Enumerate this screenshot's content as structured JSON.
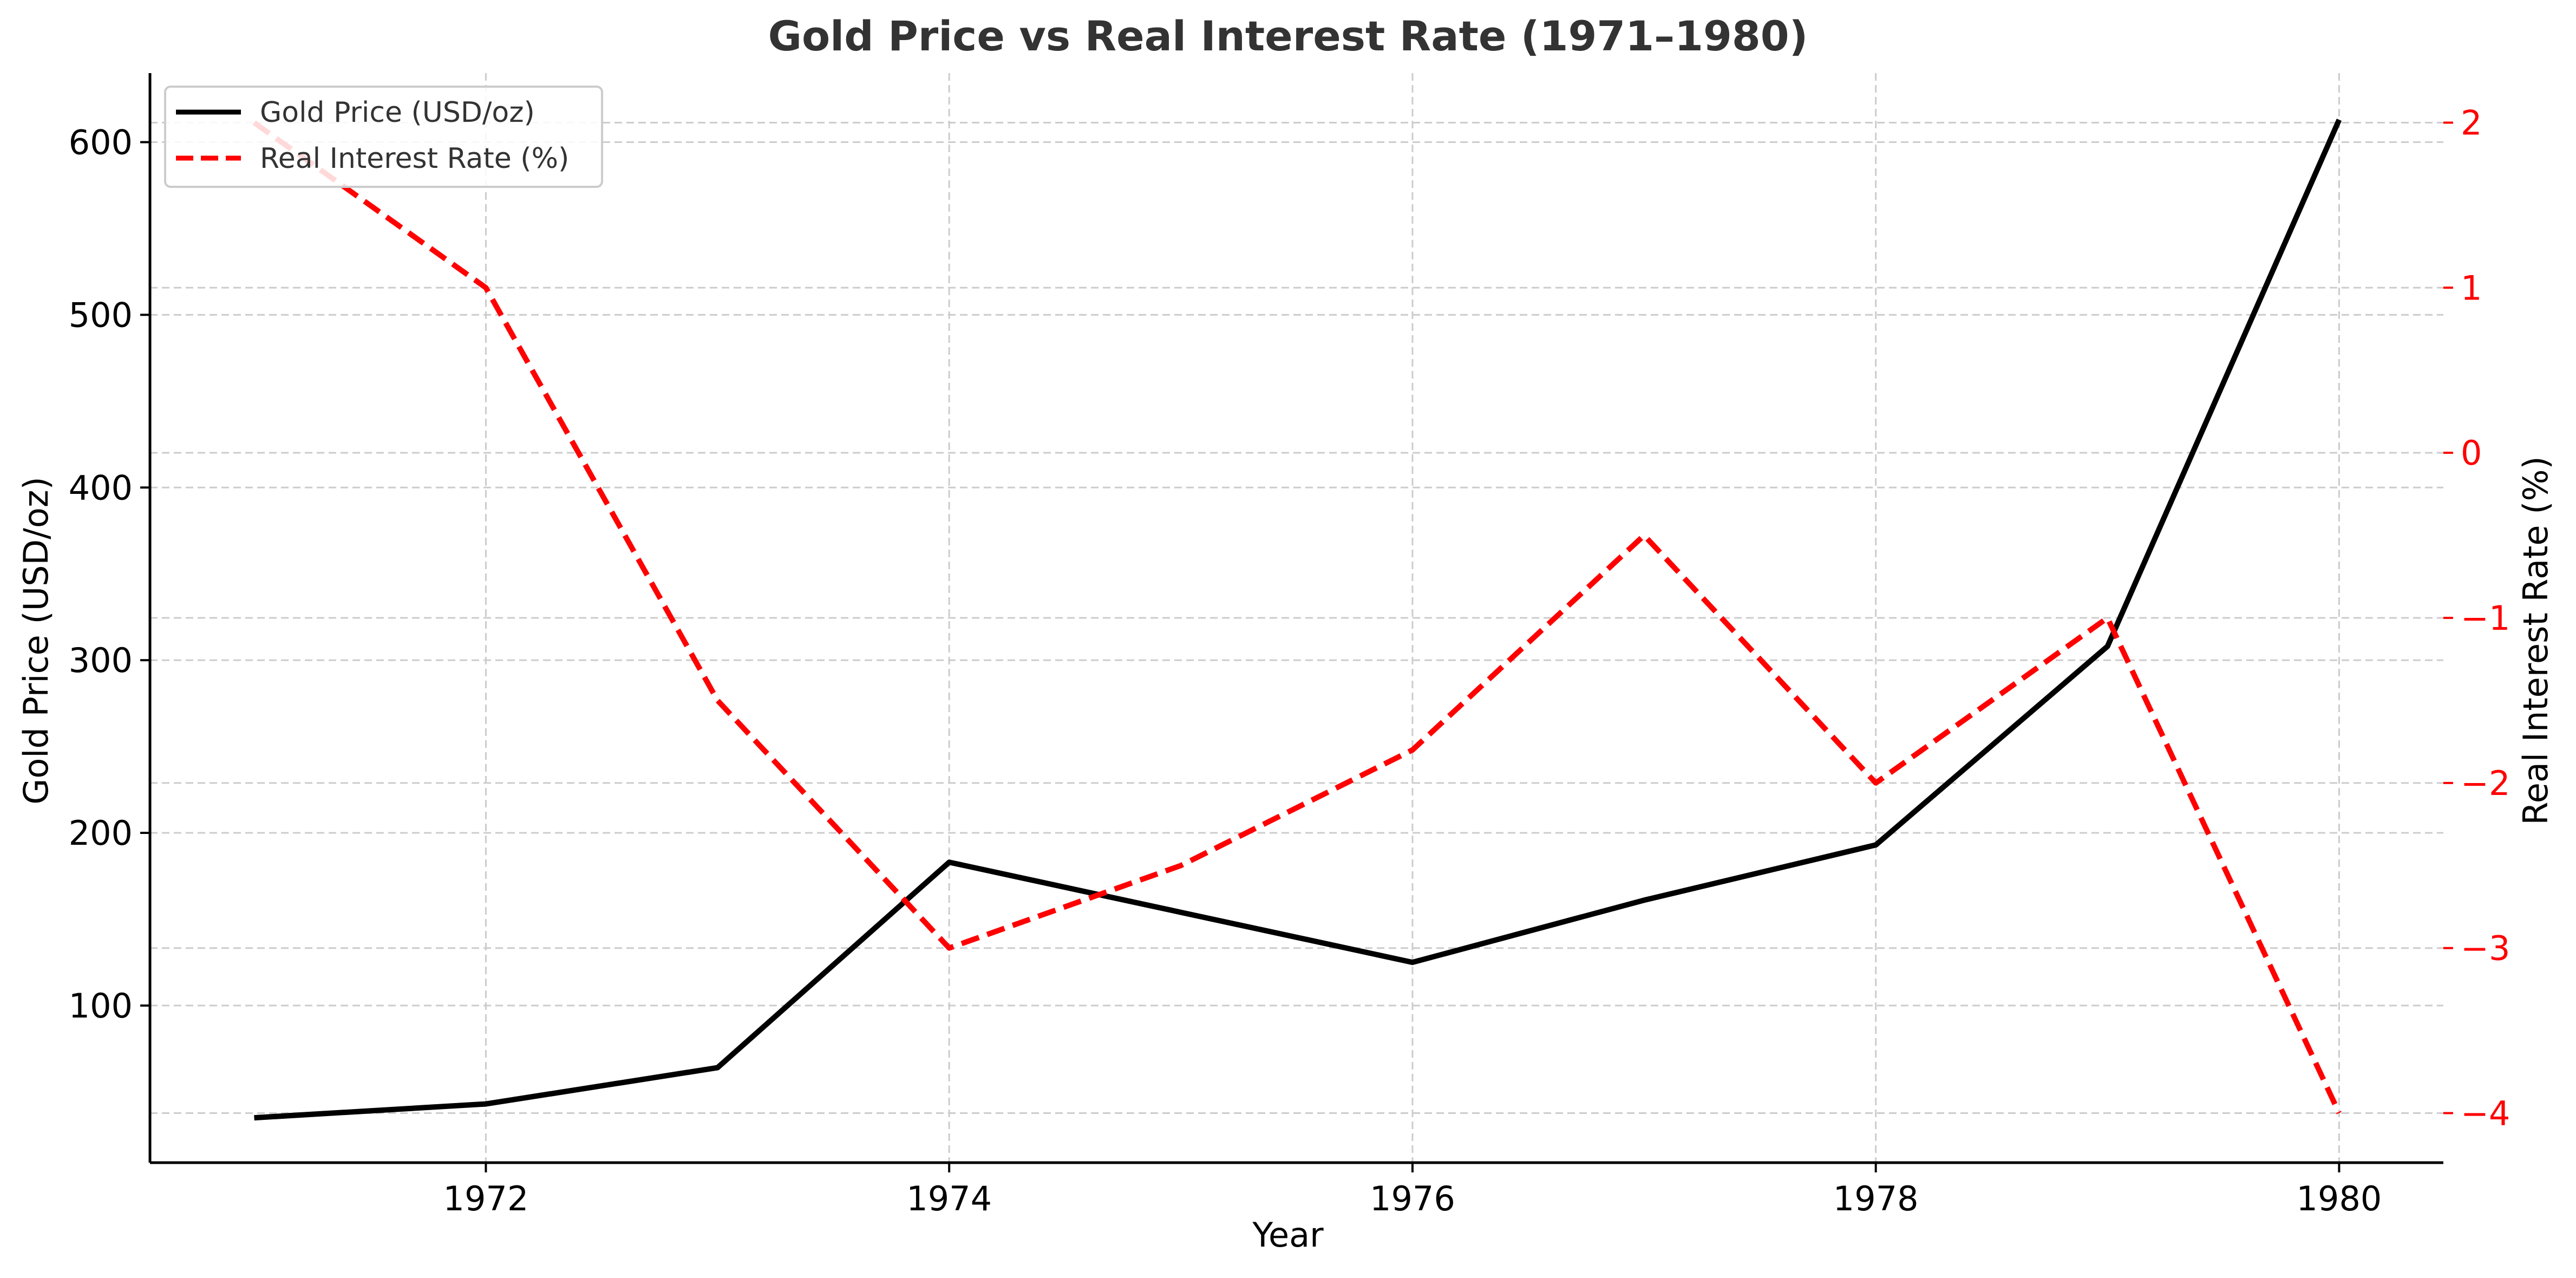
{
  "chart_data": {
    "type": "line",
    "title": "Gold Price vs Real Interest Rate (1971–1980)",
    "xlabel": "Year",
    "ylabel_left": "Gold Price (USD/oz)",
    "ylabel_right": "Real Interest Rate (%)",
    "x": [
      1971,
      1972,
      1973,
      1974,
      1975,
      1976,
      1977,
      1978,
      1979,
      1980
    ],
    "xlim": [
      1970.55,
      1980.45
    ],
    "x_ticks": [
      1972,
      1974,
      1976,
      1978,
      1980
    ],
    "ylim_left": [
      9,
      640
    ],
    "y_ticks_left": [
      100,
      200,
      300,
      400,
      500,
      600
    ],
    "ylim_right": [
      -4.3,
      2.3
    ],
    "y_ticks_right": [
      -4,
      -3,
      -2,
      -1,
      0,
      1,
      2
    ],
    "y_tick_labels_right": [
      "−4",
      "−3",
      "−2",
      "−1",
      "0",
      "1",
      "2"
    ],
    "series": [
      {
        "name": "Gold Price (USD/oz)",
        "axis": "left",
        "color": "#000000",
        "style": "solid",
        "values": [
          35,
          43,
          64,
          183,
          154,
          125,
          161,
          193,
          308,
          613
        ]
      },
      {
        "name": "Real Interest Rate (%)",
        "axis": "right",
        "color": "#ff0000",
        "style": "dashed",
        "values": [
          2,
          1,
          -1.5,
          -3,
          -2.5,
          -1.8,
          -0.5,
          -2,
          -1,
          -4
        ]
      }
    ],
    "grid": true,
    "legend_position": "top-left",
    "right_axis_color": "#ff0000"
  }
}
